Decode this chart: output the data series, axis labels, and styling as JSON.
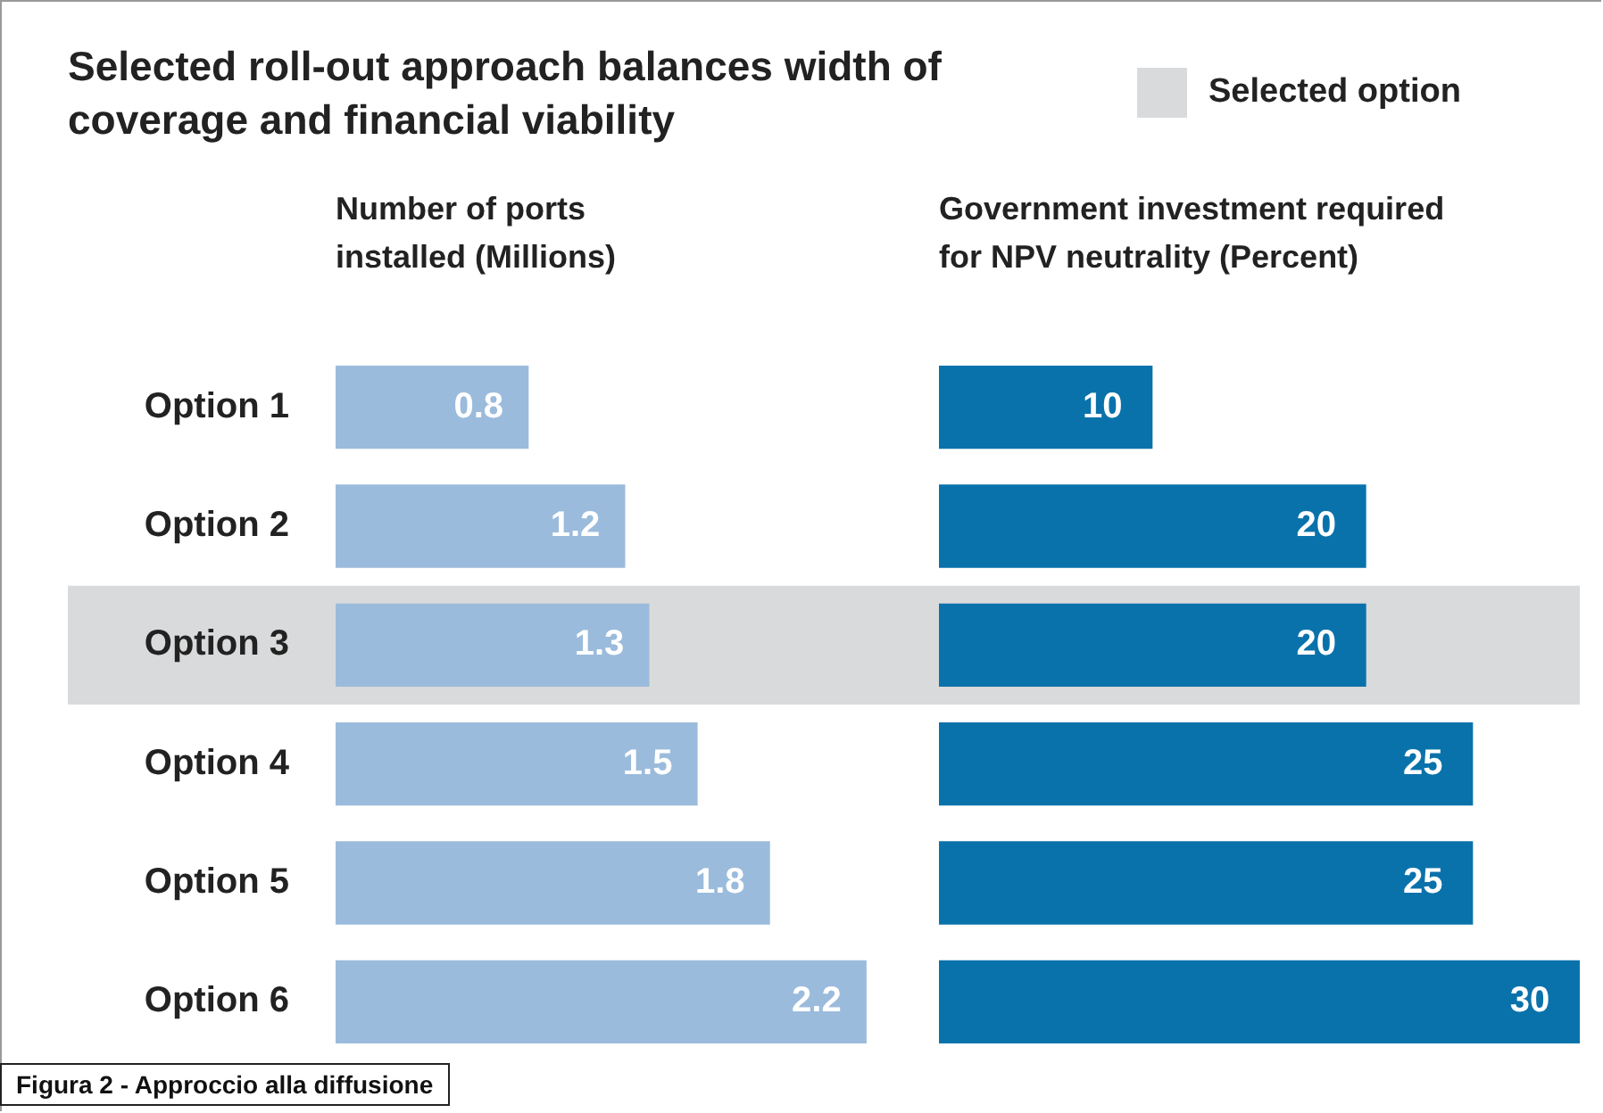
{
  "chart_data": [
    {
      "type": "bar",
      "orientation": "horizontal",
      "title": "Selected roll-out approach balances width of coverage and financial viability",
      "xlabel": "Number of ports installed (Millions)",
      "categories": [
        "Option 1",
        "Option 2",
        "Option 3",
        "Option 4",
        "Option 5",
        "Option 6"
      ],
      "values": [
        0.8,
        1.2,
        1.3,
        1.5,
        1.8,
        2.2
      ],
      "color": "#9bbbdc",
      "data_labels": true,
      "grid": false,
      "tick_labels": "y",
      "bands": [
        {
          "axis": "y",
          "from": "Option 3",
          "to": "Option 3",
          "label": "Selected option",
          "color": "#d9dadb"
        }
      ],
      "annotations": [
        "Figura 2 - Approccio alla diffusione"
      ]
    },
    {
      "type": "bar",
      "orientation": "horizontal",
      "xlabel": "Government investment required for NPV neutrality (Percent)",
      "categories": [
        "Option 1",
        "Option 2",
        "Option 3",
        "Option 4",
        "Option 5",
        "Option 6"
      ],
      "values": [
        10,
        20,
        20,
        25,
        25,
        30
      ],
      "color": "#0a72ab",
      "data_labels": true,
      "grid": false,
      "tick_labels": false,
      "bands": [
        {
          "axis": "y",
          "from": "Option 3",
          "to": "Option 3",
          "color": "#d9dadb"
        }
      ]
    }
  ]
}
